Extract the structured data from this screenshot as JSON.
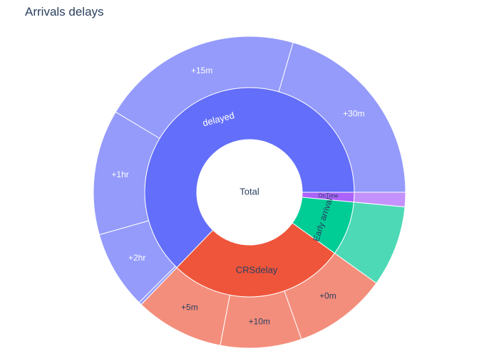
{
  "chart_data": {
    "type": "sunburst",
    "title": "Arrivals delays",
    "root": {
      "label": "Total",
      "value": 1000
    },
    "colors": {
      "root": "#ffffff",
      "delayed": "#636efa",
      "delayed_child": "#949bfb",
      "CRSdelay": "#ef553b",
      "CRSdelay_child": "#f48e7c",
      "Early arrival": "#00cc96",
      "Early arrival_child": "#4dd9b6",
      "OnTime": "#ab63fa",
      "OnTime_child": "#c492fc",
      "stroke": "#ffffff",
      "label_dark": "#2a3f5f",
      "label_light": "#ffffff"
    },
    "nodes": [
      {
        "label": "delayed",
        "value": 628,
        "children": [
          {
            "label": "+30m",
            "value": 205
          },
          {
            "label": "+15m",
            "value": 209
          },
          {
            "label": "+1hr",
            "value": 130
          },
          {
            "label": "+2hr",
            "value": 81
          },
          {
            "label": "",
            "value": 3
          }
        ]
      },
      {
        "label": "CRSdelay",
        "value": 273,
        "children": [
          {
            "label": "+5m",
            "value": 92
          },
          {
            "label": "+10m",
            "value": 84
          },
          {
            "label": "+0m",
            "value": 97
          }
        ]
      },
      {
        "label": "Early arrival",
        "value": 84,
        "children": [
          {
            "label": "",
            "value": 84
          }
        ]
      },
      {
        "label": "OnTime",
        "value": 15,
        "children": [
          {
            "label": "",
            "value": 15
          }
        ]
      }
    ]
  }
}
